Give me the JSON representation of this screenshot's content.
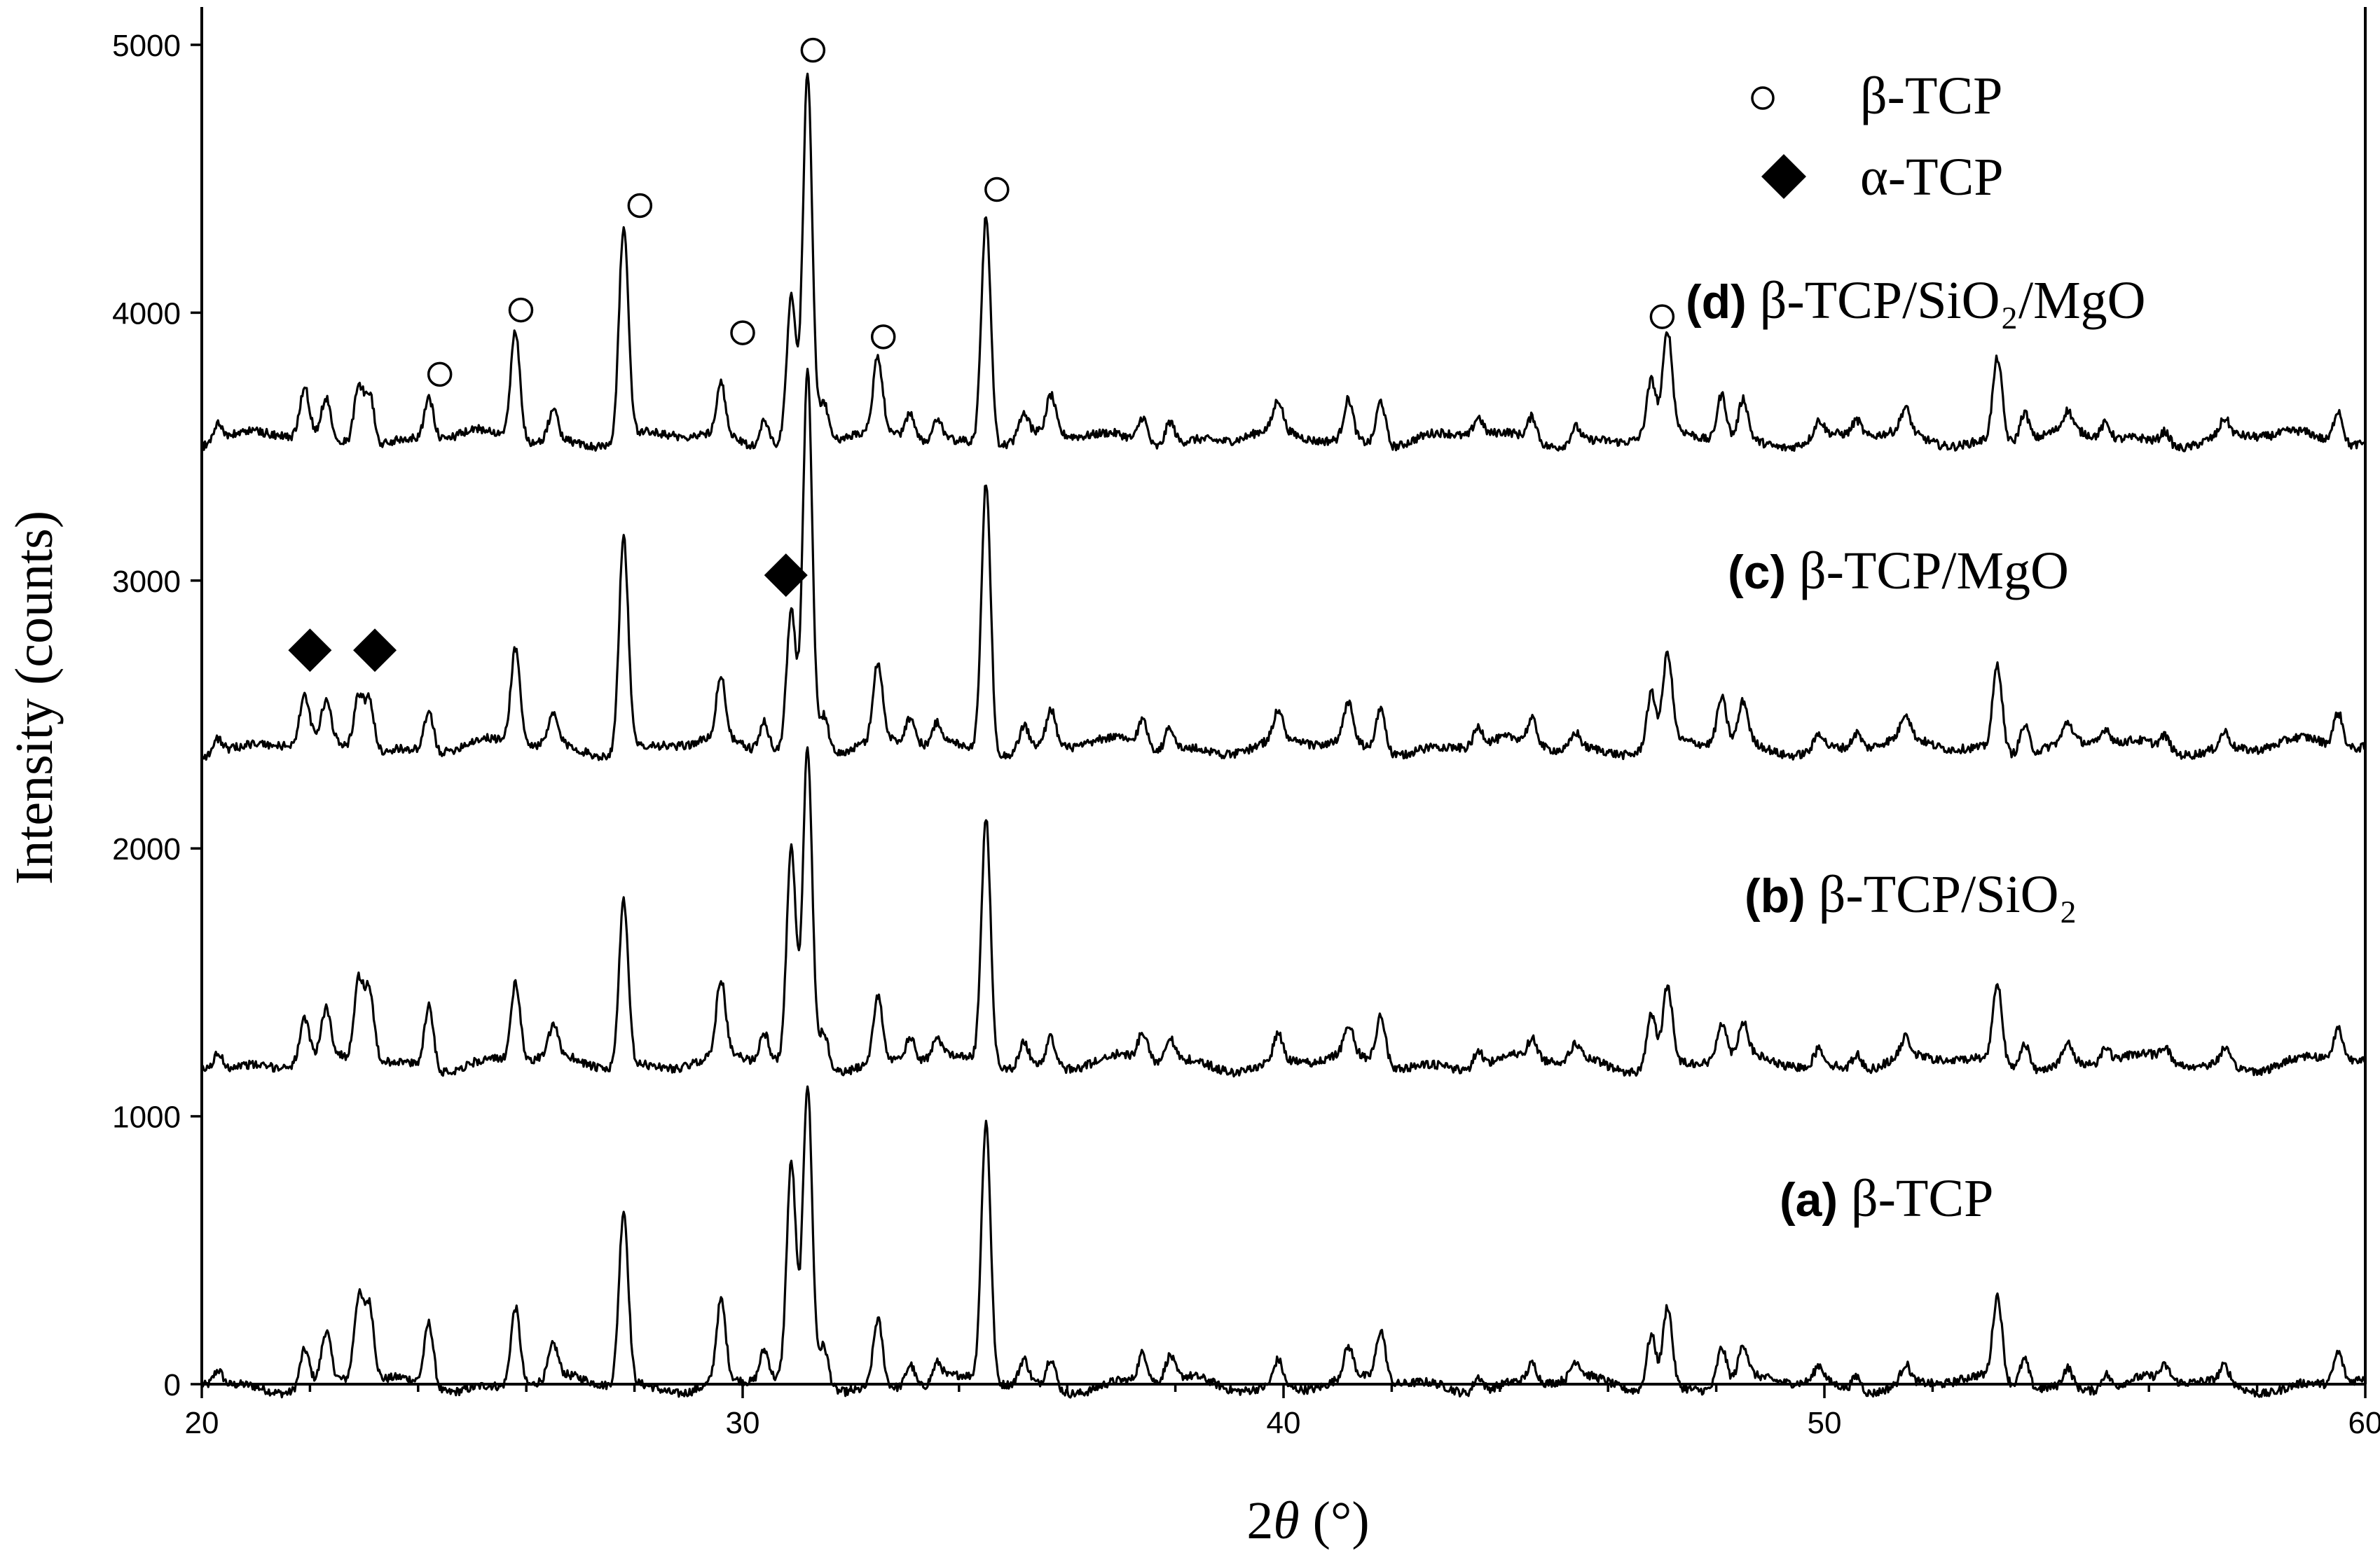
{
  "chart_data": {
    "type": "line",
    "xlabel_prefix": "2",
    "xlabel_var": "θ",
    "xlabel_suffix": " (°)",
    "ylabel": "Intensity (counts)",
    "xlim": [
      20,
      60
    ],
    "ylim": [
      0,
      5000
    ],
    "x_ticks": [
      "20",
      "30",
      "40",
      "50",
      "60"
    ],
    "x_tick_values": [
      20,
      30,
      40,
      50,
      60
    ],
    "y_ticks": [
      "0",
      "1000",
      "2000",
      "3000",
      "4000",
      "5000"
    ],
    "y_tick_values": [
      0,
      1000,
      2000,
      3000,
      4000,
      5000
    ],
    "legend": {
      "placement": "top-right",
      "items": [
        {
          "marker": "open-circle",
          "label": "β-TCP"
        },
        {
          "marker": "filled-diamond",
          "label": "α-TCP"
        }
      ]
    },
    "peaks_2theta": [
      20.3,
      21.9,
      22.3,
      22.9,
      23.1,
      24.2,
      25.8,
      26.5,
      27.8,
      29.6,
      30.4,
      30.9,
      31.2,
      31.5,
      32.5,
      33.1,
      33.6,
      34.5,
      35.2,
      35.7,
      37.4,
      37.9,
      39.9,
      41.2,
      41.8,
      43.6,
      44.6,
      45.4,
      46.8,
      47.1,
      48.1,
      48.5,
      49.9,
      50.6,
      51.5,
      53.2,
      53.7,
      54.5,
      55.2,
      56.3,
      57.4,
      59.5
    ],
    "series": [
      {
        "tag": "(a)",
        "name": "β-TCP",
        "baseline": 0,
        "peak_heights": [
          60,
          140,
          180,
          310,
          280,
          240,
          300,
          120,
          650,
          300,
          120,
          800,
          1100,
          150,
          250,
          90,
          70,
          970,
          90,
          110,
          110,
          90,
          100,
          110,
          190,
          60,
          70,
          60,
          200,
          300,
          140,
          120,
          60,
          60,
          70,
          310,
          110,
          70,
          60,
          50,
          60,
          120
        ]
      },
      {
        "tag": "(b)",
        "name": "β-TCP/SiO₂",
        "baseline": 1200,
        "peak_heights": [
          60,
          150,
          170,
          300,
          270,
          240,
          290,
          110,
          620,
          280,
          110,
          790,
          1180,
          140,
          240,
          90,
          70,
          920,
          90,
          110,
          100,
          90,
          100,
          110,
          180,
          60,
          70,
          60,
          200,
          290,
          140,
          120,
          60,
          60,
          70,
          300,
          110,
          70,
          60,
          50,
          60,
          120
        ]
      },
      {
        "tag": "(c)",
        "name": "β-TCP/MgO",
        "baseline": 2380,
        "peak_heights": [
          60,
          170,
          140,
          200,
          190,
          150,
          360,
          110,
          800,
          230,
          110,
          520,
          1420,
          140,
          290,
          100,
          80,
          1010,
          90,
          140,
          100,
          90,
          110,
          150,
          170,
          70,
          90,
          60,
          200,
          330,
          170,
          150,
          60,
          60,
          90,
          320,
          110,
          70,
          60,
          50,
          60,
          130
        ]
      },
      {
        "tag": "(d)",
        "name": "β-TCP/SiO₂/MgO",
        "baseline": 3530,
        "peak_heights": [
          70,
          180,
          140,
          220,
          200,
          150,
          410,
          120,
          790,
          190,
          100,
          540,
          1370,
          140,
          270,
          100,
          80,
          860,
          90,
          140,
          100,
          90,
          110,
          150,
          170,
          70,
          90,
          60,
          200,
          370,
          170,
          150,
          60,
          60,
          90,
          310,
          110,
          70,
          60,
          50,
          60,
          130
        ]
      }
    ],
    "beta_markers": [
      {
        "x": 24.4,
        "y": 3770
      },
      {
        "x": 25.9,
        "y": 4010
      },
      {
        "x": 28.1,
        "y": 4400
      },
      {
        "x": 30.0,
        "y": 3925
      },
      {
        "x": 31.3,
        "y": 4980
      },
      {
        "x": 32.6,
        "y": 3910
      },
      {
        "x": 34.7,
        "y": 4460
      },
      {
        "x": 47.0,
        "y": 3985
      }
    ],
    "alpha_markers": [
      {
        "x": 22.0,
        "y": 2740
      },
      {
        "x": 23.2,
        "y": 2740
      },
      {
        "x": 30.8,
        "y": 3020
      }
    ]
  }
}
